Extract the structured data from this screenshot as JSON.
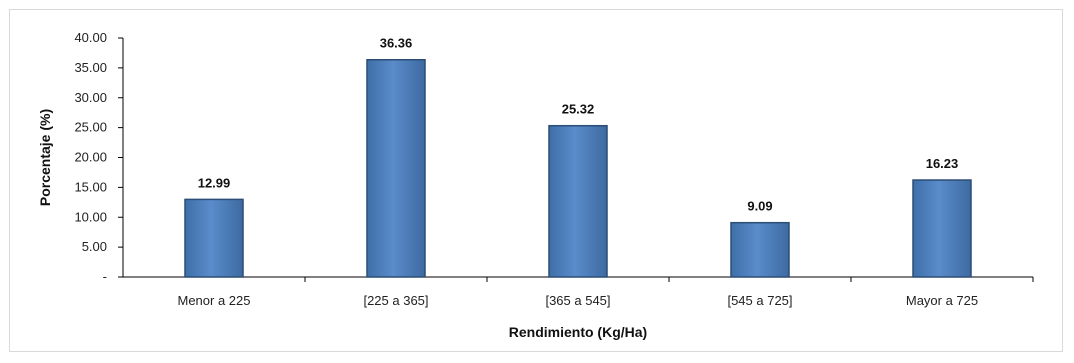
{
  "chart_data": {
    "type": "bar",
    "categories": [
      "Menor a 225",
      "[225 a 365]",
      "[365 a 545]",
      "[545 a 725]",
      "Mayor a 725"
    ],
    "values": [
      12.99,
      36.36,
      25.32,
      9.09,
      16.23
    ],
    "value_labels": [
      "12.99",
      "36.36",
      "25.32",
      "9.09",
      "16.23"
    ],
    "title": "",
    "xlabel": "Rendimiento (Kg/Ha)",
    "ylabel": "Porcentaje (%)",
    "ylim": [
      0,
      40
    ],
    "yticks": [
      "-",
      "5.00",
      "10.00",
      "15.00",
      "20.00",
      "25.00",
      "30.00",
      "35.00",
      "40.00"
    ],
    "grid": false,
    "legend": "none",
    "bar_color": "#4f81bd",
    "bar_edge_color": "#2c4d75"
  }
}
